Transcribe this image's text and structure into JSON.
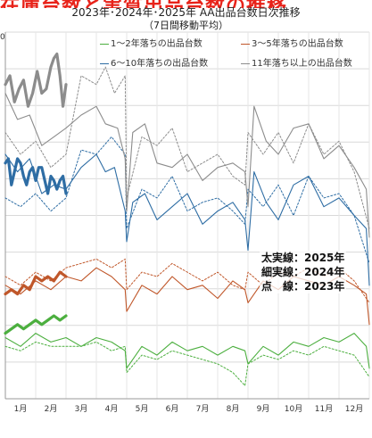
{
  "header": {
    "partial_title": "在庫台数と実質出品台数の推移",
    "title": "2023年･2024年･2025年  AA出品台数日次推移",
    "subtitle": "（7日間移動平均）"
  },
  "legend": [
    {
      "label": "1～2年落ちの出品台数",
      "color": "#4caf3f"
    },
    {
      "label": "3～5年落ちの出品台数",
      "color": "#c0572a"
    },
    {
      "label": "6～10年落ちの出品台数",
      "color": "#2e6da4"
    },
    {
      "label": "11年落ち以上の出品台数",
      "color": "#8c8c8c"
    }
  ],
  "line_style_note": {
    "thick": "太実線：2025年",
    "thin": "細実線：2024年",
    "dotted": "点　線：2023年"
  },
  "y_axis_top_label": "0",
  "chart_data": {
    "type": "line",
    "title": "2023年･2024年･2025年  AA出品台数日次推移",
    "subtitle": "（7日間移動平均）",
    "x_tick_labels": [
      "1月",
      "2月",
      "3月",
      "4月",
      "5月",
      "6月",
      "7月",
      "8月",
      "9月",
      "10月",
      "11月",
      "12月"
    ],
    "line_styles": {
      "2025": "thick solid",
      "2024": "thin solid",
      "2023": "dotted"
    },
    "grid": true,
    "series": [
      {
        "name": "11年落ち以上の出品台数",
        "year": "2025",
        "color": "#8c8c8c",
        "values": [
          [
            0.0,
            0.38
          ],
          [
            0.15,
            0.4
          ],
          [
            0.3,
            0.34
          ],
          [
            0.45,
            0.37
          ],
          [
            0.6,
            0.39
          ],
          [
            0.75,
            0.33
          ],
          [
            0.9,
            0.36
          ],
          [
            1.05,
            0.41
          ],
          [
            1.2,
            0.36
          ],
          [
            1.35,
            0.37
          ],
          [
            1.5,
            0.42
          ],
          [
            1.6,
            0.44
          ],
          [
            1.7,
            0.45
          ],
          [
            1.8,
            0.4
          ],
          [
            1.9,
            0.33
          ],
          [
            2.0,
            0.38
          ]
        ]
      },
      {
        "name": "11年落ち以上の出品台数",
        "year": "2024",
        "color": "#8c8c8c",
        "values": [
          [
            0.0,
            0.36
          ],
          [
            0.4,
            0.3
          ],
          [
            0.8,
            0.31
          ],
          [
            1.2,
            0.24
          ],
          [
            1.6,
            0.26
          ],
          [
            2.0,
            0.28
          ],
          [
            2.5,
            0.31
          ],
          [
            3.0,
            0.33
          ],
          [
            3.3,
            0.29
          ],
          [
            3.7,
            0.28
          ],
          [
            3.95,
            0.21
          ],
          [
            4.0,
            0.09
          ],
          [
            4.2,
            0.27
          ],
          [
            4.6,
            0.29
          ],
          [
            5.0,
            0.2
          ],
          [
            5.5,
            0.19
          ],
          [
            6.0,
            0.22
          ],
          [
            6.5,
            0.16
          ],
          [
            7.0,
            0.19
          ],
          [
            7.5,
            0.2
          ],
          [
            7.9,
            0.18
          ],
          [
            8.0,
            0.1
          ],
          [
            8.2,
            0.33
          ],
          [
            8.6,
            0.25
          ],
          [
            9.0,
            0.22
          ],
          [
            9.5,
            0.28
          ],
          [
            10.0,
            0.29
          ],
          [
            10.5,
            0.21
          ],
          [
            11.0,
            0.24
          ],
          [
            11.5,
            0.19
          ],
          [
            11.9,
            0.14
          ],
          [
            12.0,
            0.03
          ]
        ]
      },
      {
        "name": "11年落ち以上の出品台数",
        "year": "2023",
        "color": "#8c8c8c",
        "values": [
          [
            0.0,
            0.27
          ],
          [
            0.5,
            0.22
          ],
          [
            1.0,
            0.25
          ],
          [
            1.5,
            0.19
          ],
          [
            2.0,
            0.22
          ],
          [
            2.5,
            0.4
          ],
          [
            3.0,
            0.38
          ],
          [
            3.3,
            0.42
          ],
          [
            3.6,
            0.36
          ],
          [
            3.95,
            0.4
          ],
          [
            4.0,
            0.12
          ],
          [
            4.5,
            0.26
          ],
          [
            5.0,
            0.24
          ],
          [
            5.5,
            0.28
          ],
          [
            6.0,
            0.18
          ],
          [
            6.5,
            0.2
          ],
          [
            7.0,
            0.22
          ],
          [
            7.5,
            0.17
          ],
          [
            7.9,
            0.15
          ],
          [
            8.0,
            0.27
          ],
          [
            8.5,
            0.22
          ],
          [
            9.0,
            0.27
          ],
          [
            9.5,
            0.2
          ],
          [
            10.0,
            0.29
          ],
          [
            10.5,
            0.22
          ],
          [
            11.0,
            0.25
          ],
          [
            11.5,
            0.18
          ],
          [
            12.0,
            0.05
          ]
        ]
      },
      {
        "name": "6～10年落ちの出品台数",
        "year": "2025",
        "color": "#2e6da4",
        "values": [
          [
            0.0,
            0.2
          ],
          [
            0.1,
            0.21
          ],
          [
            0.2,
            0.15
          ],
          [
            0.3,
            0.18
          ],
          [
            0.4,
            0.21
          ],
          [
            0.5,
            0.2
          ],
          [
            0.6,
            0.17
          ],
          [
            0.7,
            0.15
          ],
          [
            0.8,
            0.18
          ],
          [
            0.9,
            0.19
          ],
          [
            1.0,
            0.16
          ],
          [
            1.1,
            0.19
          ],
          [
            1.2,
            0.19
          ],
          [
            1.3,
            0.16
          ],
          [
            1.4,
            0.13
          ],
          [
            1.5,
            0.17
          ],
          [
            1.6,
            0.16
          ],
          [
            1.7,
            0.14
          ],
          [
            1.8,
            0.16
          ],
          [
            1.9,
            0.17
          ],
          [
            2.0,
            0.13
          ]
        ]
      },
      {
        "name": "6～10年落ちの出品台数",
        "year": "2024",
        "color": "#2e6da4",
        "values": [
          [
            0.0,
            0.22
          ],
          [
            0.4,
            0.18
          ],
          [
            0.8,
            0.21
          ],
          [
            1.2,
            0.13
          ],
          [
            1.6,
            0.15
          ],
          [
            2.0,
            0.14
          ],
          [
            2.5,
            0.19
          ],
          [
            3.0,
            0.22
          ],
          [
            3.3,
            0.18
          ],
          [
            3.6,
            0.19
          ],
          [
            3.95,
            0.09
          ],
          [
            4.0,
            0.02
          ],
          [
            4.2,
            0.11
          ],
          [
            4.6,
            0.13
          ],
          [
            5.0,
            0.07
          ],
          [
            5.5,
            0.1
          ],
          [
            6.0,
            0.13
          ],
          [
            6.5,
            0.06
          ],
          [
            7.0,
            0.09
          ],
          [
            7.5,
            0.11
          ],
          [
            7.9,
            0.07
          ],
          [
            8.0,
            0.0
          ],
          [
            8.2,
            0.18
          ],
          [
            8.6,
            0.11
          ],
          [
            9.0,
            0.07
          ],
          [
            9.5,
            0.15
          ],
          [
            10.0,
            0.17
          ],
          [
            10.5,
            0.1
          ],
          [
            11.0,
            0.12
          ],
          [
            11.5,
            0.08
          ],
          [
            11.9,
            0.05
          ],
          [
            12.0,
            -0.08
          ]
        ]
      },
      {
        "name": "6～10年落ちの出品台数",
        "year": "2023",
        "color": "#2e6da4",
        "values": [
          [
            0.0,
            0.12
          ],
          [
            0.5,
            0.1
          ],
          [
            1.0,
            0.13
          ],
          [
            1.5,
            0.09
          ],
          [
            2.0,
            0.12
          ],
          [
            2.5,
            0.23
          ],
          [
            3.0,
            0.22
          ],
          [
            3.5,
            0.26
          ],
          [
            3.95,
            0.22
          ],
          [
            4.0,
            0.05
          ],
          [
            4.5,
            0.14
          ],
          [
            5.0,
            0.12
          ],
          [
            5.5,
            0.17
          ],
          [
            6.0,
            0.09
          ],
          [
            6.5,
            0.11
          ],
          [
            7.0,
            0.12
          ],
          [
            7.5,
            0.09
          ],
          [
            7.9,
            0.06
          ],
          [
            8.0,
            0.14
          ],
          [
            8.5,
            0.1
          ],
          [
            9.0,
            0.15
          ],
          [
            9.5,
            0.08
          ],
          [
            10.0,
            0.17
          ],
          [
            10.5,
            0.12
          ],
          [
            11.0,
            0.13
          ],
          [
            11.5,
            0.08
          ],
          [
            12.0,
            -0.03
          ]
        ]
      },
      {
        "name": "3～5年落ちの出品台数",
        "year": "2025",
        "color": "#c0572a",
        "values": [
          [
            0.0,
            -0.1
          ],
          [
            0.2,
            -0.09
          ],
          [
            0.4,
            -0.1
          ],
          [
            0.6,
            -0.08
          ],
          [
            0.8,
            -0.09
          ],
          [
            1.0,
            -0.06
          ],
          [
            1.2,
            -0.07
          ],
          [
            1.4,
            -0.06
          ],
          [
            1.6,
            -0.07
          ],
          [
            1.8,
            -0.05
          ],
          [
            2.0,
            -0.06
          ]
        ]
      },
      {
        "name": "3～5年落ちの出品台数",
        "year": "2024",
        "color": "#c0572a",
        "values": [
          [
            0.0,
            -0.08
          ],
          [
            0.5,
            -0.1
          ],
          [
            1.0,
            -0.07
          ],
          [
            1.5,
            -0.09
          ],
          [
            2.0,
            -0.06
          ],
          [
            2.5,
            -0.07
          ],
          [
            3.0,
            -0.04
          ],
          [
            3.5,
            -0.06
          ],
          [
            3.95,
            -0.09
          ],
          [
            4.0,
            -0.14
          ],
          [
            4.5,
            -0.08
          ],
          [
            5.0,
            -0.1
          ],
          [
            5.5,
            -0.06
          ],
          [
            6.0,
            -0.09
          ],
          [
            6.5,
            -0.08
          ],
          [
            7.0,
            -0.11
          ],
          [
            7.5,
            -0.07
          ],
          [
            7.9,
            -0.09
          ],
          [
            8.0,
            -0.12
          ],
          [
            8.5,
            -0.07
          ],
          [
            9.0,
            -0.09
          ],
          [
            9.5,
            -0.06
          ],
          [
            10.0,
            -0.07
          ],
          [
            10.5,
            -0.08
          ],
          [
            11.0,
            -0.06
          ],
          [
            11.5,
            -0.08
          ],
          [
            11.9,
            -0.1
          ],
          [
            12.0,
            -0.17
          ]
        ]
      },
      {
        "name": "3～5年落ちの出品台数",
        "year": "2023",
        "color": "#c0572a",
        "values": [
          [
            0.0,
            -0.06
          ],
          [
            0.5,
            -0.08
          ],
          [
            1.0,
            -0.05
          ],
          [
            1.5,
            -0.07
          ],
          [
            2.0,
            -0.04
          ],
          [
            2.5,
            -0.03
          ],
          [
            3.0,
            -0.02
          ],
          [
            3.5,
            -0.04
          ],
          [
            3.95,
            -0.02
          ],
          [
            4.0,
            -0.09
          ],
          [
            4.5,
            -0.05
          ],
          [
            5.0,
            -0.06
          ],
          [
            5.5,
            -0.03
          ],
          [
            6.0,
            -0.05
          ],
          [
            6.5,
            -0.07
          ],
          [
            7.0,
            -0.05
          ],
          [
            7.5,
            -0.08
          ],
          [
            7.9,
            -0.09
          ],
          [
            8.0,
            -0.05
          ],
          [
            8.5,
            -0.08
          ],
          [
            9.0,
            -0.05
          ],
          [
            9.5,
            -0.06
          ],
          [
            10.0,
            -0.04
          ],
          [
            10.5,
            -0.06
          ],
          [
            11.0,
            -0.04
          ],
          [
            11.5,
            -0.07
          ],
          [
            12.0,
            -0.12
          ]
        ]
      },
      {
        "name": "1～2年落ちの出品台数",
        "year": "2025",
        "color": "#4caf3f",
        "values": [
          [
            0.0,
            -0.19
          ],
          [
            0.2,
            -0.18
          ],
          [
            0.4,
            -0.17
          ],
          [
            0.6,
            -0.18
          ],
          [
            0.8,
            -0.17
          ],
          [
            1.0,
            -0.16
          ],
          [
            1.2,
            -0.17
          ],
          [
            1.4,
            -0.16
          ],
          [
            1.6,
            -0.15
          ],
          [
            1.8,
            -0.16
          ],
          [
            2.0,
            -0.15
          ]
        ]
      },
      {
        "name": "1～2年落ちの出品台数",
        "year": "2024",
        "color": "#4caf3f",
        "values": [
          [
            0.0,
            -0.2
          ],
          [
            0.5,
            -0.22
          ],
          [
            1.0,
            -0.19
          ],
          [
            1.5,
            -0.21
          ],
          [
            2.0,
            -0.2
          ],
          [
            2.5,
            -0.22
          ],
          [
            3.0,
            -0.2
          ],
          [
            3.5,
            -0.21
          ],
          [
            3.95,
            -0.23
          ],
          [
            4.0,
            -0.27
          ],
          [
            4.5,
            -0.22
          ],
          [
            5.0,
            -0.24
          ],
          [
            5.5,
            -0.21
          ],
          [
            6.0,
            -0.23
          ],
          [
            6.5,
            -0.22
          ],
          [
            7.0,
            -0.24
          ],
          [
            7.5,
            -0.22
          ],
          [
            7.9,
            -0.23
          ],
          [
            8.0,
            -0.26
          ],
          [
            8.5,
            -0.22
          ],
          [
            9.0,
            -0.24
          ],
          [
            9.5,
            -0.21
          ],
          [
            10.0,
            -0.22
          ],
          [
            10.5,
            -0.2
          ],
          [
            11.0,
            -0.21
          ],
          [
            11.5,
            -0.19
          ],
          [
            11.9,
            -0.22
          ],
          [
            12.0,
            -0.27
          ]
        ]
      },
      {
        "name": "1～2年落ちの出品台数",
        "year": "2023",
        "color": "#4caf3f",
        "values": [
          [
            0.0,
            -0.22
          ],
          [
            0.5,
            -0.23
          ],
          [
            1.0,
            -0.21
          ],
          [
            1.5,
            -0.22
          ],
          [
            2.0,
            -0.22
          ],
          [
            2.5,
            -0.22
          ],
          [
            3.0,
            -0.21
          ],
          [
            3.5,
            -0.23
          ],
          [
            3.95,
            -0.22
          ],
          [
            4.0,
            -0.28
          ],
          [
            4.5,
            -0.24
          ],
          [
            5.0,
            -0.25
          ],
          [
            5.5,
            -0.23
          ],
          [
            6.0,
            -0.24
          ],
          [
            6.5,
            -0.25
          ],
          [
            7.0,
            -0.26
          ],
          [
            7.5,
            -0.28
          ],
          [
            7.9,
            -0.31
          ],
          [
            8.0,
            -0.26
          ],
          [
            8.5,
            -0.24
          ],
          [
            9.0,
            -0.25
          ],
          [
            9.5,
            -0.23
          ],
          [
            10.0,
            -0.24
          ],
          [
            10.5,
            -0.22
          ],
          [
            11.0,
            -0.23
          ],
          [
            11.5,
            -0.24
          ],
          [
            12.0,
            -0.29
          ]
        ]
      }
    ]
  }
}
